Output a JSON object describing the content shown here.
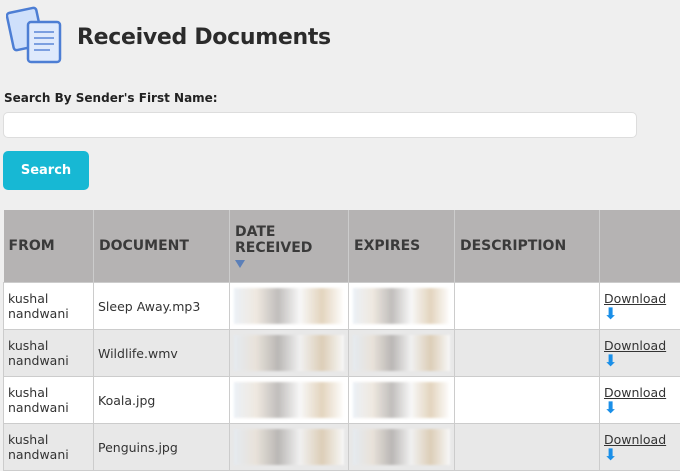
{
  "header": {
    "title": "Received Documents",
    "icon": "documents-icon"
  },
  "search": {
    "label": "Search By Sender's First Name:",
    "value": "",
    "placeholder": "",
    "button": "Search"
  },
  "table": {
    "columns": [
      "FROM",
      "DOCUMENT",
      "DATE RECEIVED",
      "EXPIRES",
      "DESCRIPTION",
      ""
    ],
    "sort": {
      "column": "DATE RECEIVED",
      "direction": "descending"
    },
    "rows": [
      {
        "from": "kushal nandwani",
        "document": "Sleep Away.mp3",
        "description": "",
        "action": "Download"
      },
      {
        "from": "kushal nandwani",
        "document": "Wildlife.wmv",
        "description": "",
        "action": "Download"
      },
      {
        "from": "kushal nandwani",
        "document": "Koala.jpg",
        "description": "",
        "action": "Download"
      },
      {
        "from": "kushal nandwani",
        "document": "Penguins.jpg",
        "description": "",
        "action": "Download"
      }
    ]
  },
  "colors": {
    "accent": "#17b8d4",
    "header_bg": "#b5b3b3",
    "download_arrow": "#1a8fe8"
  }
}
